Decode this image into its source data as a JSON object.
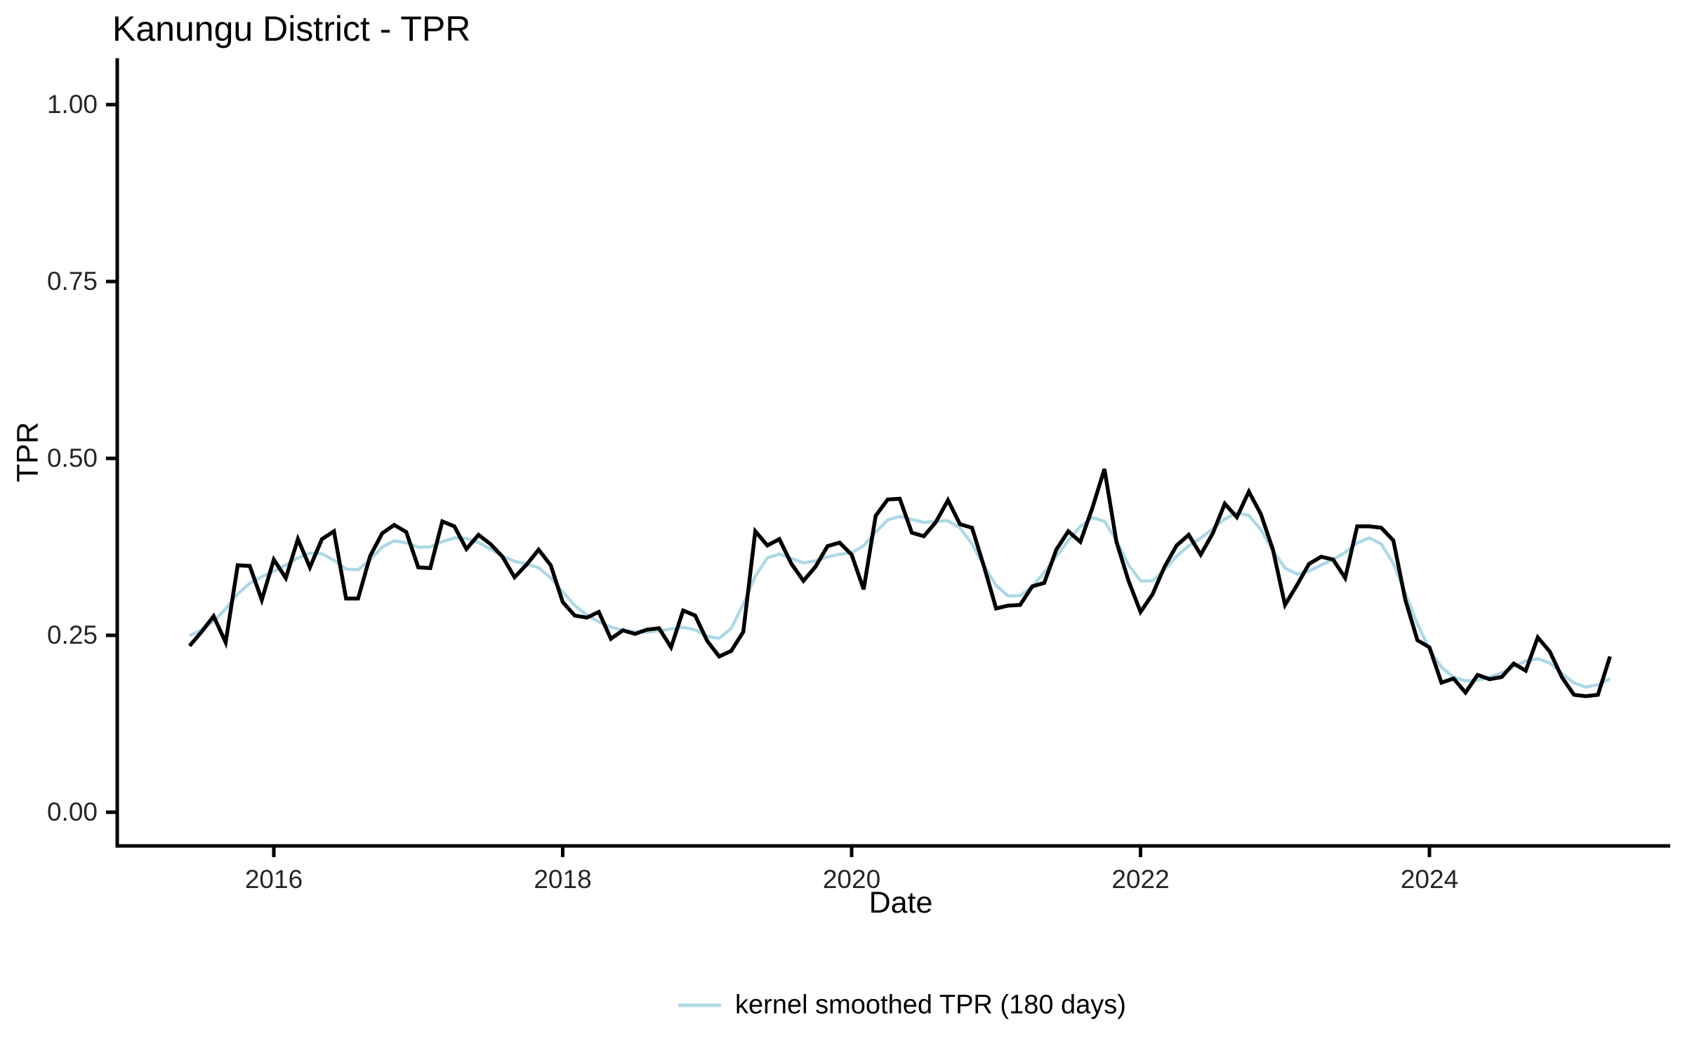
{
  "chart": {
    "title": "Kanungu District - TPR",
    "x_axis": {
      "label": "Date",
      "tick_labels": [
        "2016",
        "2018",
        "2020",
        "2022",
        "2024"
      ],
      "tick_years": [
        2016,
        2018,
        2020,
        2022,
        2024
      ]
    },
    "y_axis": {
      "label": "TPR",
      "tick_labels": [
        "0.00",
        "0.25",
        "0.50",
        "0.75",
        "1.00"
      ],
      "tick_values": [
        0,
        0.25,
        0.5,
        0.75,
        1.0
      ]
    },
    "legend": {
      "label": "kernel smoothed TPR (180 days)",
      "swatch_color": "#ADD8E6"
    }
  },
  "chart_data": {
    "type": "line",
    "title": "Kanungu District - TPR",
    "xlabel": "Date",
    "ylabel": "TPR",
    "x_start": "2015-06",
    "x_end": "2025-04",
    "frequency": "monthly",
    "x_tick_years": [
      2016,
      2018,
      2020,
      2022,
      2024
    ],
    "ylim": [
      0,
      1.0
    ],
    "y_ticks": [
      0,
      0.25,
      0.5,
      0.75,
      1.0
    ],
    "grid": false,
    "legend_position": "bottom",
    "series": [
      {
        "name": "TPR",
        "color": "#000000",
        "line_width": 5.5,
        "values": [
          0.235,
          0.255,
          0.277,
          0.24,
          0.349,
          0.348,
          0.3,
          0.357,
          0.331,
          0.386,
          0.346,
          0.386,
          0.397,
          0.302,
          0.302,
          0.362,
          0.394,
          0.406,
          0.396,
          0.346,
          0.345,
          0.411,
          0.404,
          0.372,
          0.392,
          0.379,
          0.361,
          0.332,
          0.35,
          0.371,
          0.349,
          0.297,
          0.278,
          0.275,
          0.283,
          0.245,
          0.257,
          0.252,
          0.258,
          0.26,
          0.233,
          0.285,
          0.278,
          0.242,
          0.22,
          0.228,
          0.255,
          0.397,
          0.377,
          0.386,
          0.351,
          0.327,
          0.347,
          0.376,
          0.381,
          0.364,
          0.315,
          0.419,
          0.442,
          0.443,
          0.395,
          0.39,
          0.41,
          0.441,
          0.407,
          0.402,
          0.347,
          0.288,
          0.292,
          0.293,
          0.319,
          0.324,
          0.371,
          0.397,
          0.382,
          0.43,
          0.485,
          0.382,
          0.327,
          0.283,
          0.308,
          0.347,
          0.377,
          0.392,
          0.364,
          0.394,
          0.436,
          0.417,
          0.453,
          0.421,
          0.371,
          0.293,
          0.321,
          0.351,
          0.361,
          0.357,
          0.331,
          0.404,
          0.404,
          0.402,
          0.384,
          0.3,
          0.243,
          0.233,
          0.183,
          0.189,
          0.169,
          0.194,
          0.188,
          0.191,
          0.21,
          0.2,
          0.247,
          0.227,
          0.191,
          0.166,
          0.164,
          0.166,
          0.22
        ]
      },
      {
        "name": "kernel smoothed TPR (180 days)",
        "color": "#ADD8E6",
        "line_width": 4.5,
        "derived_from": "TPR",
        "method": "gaussian_kernel",
        "window_days": 180
      }
    ]
  }
}
